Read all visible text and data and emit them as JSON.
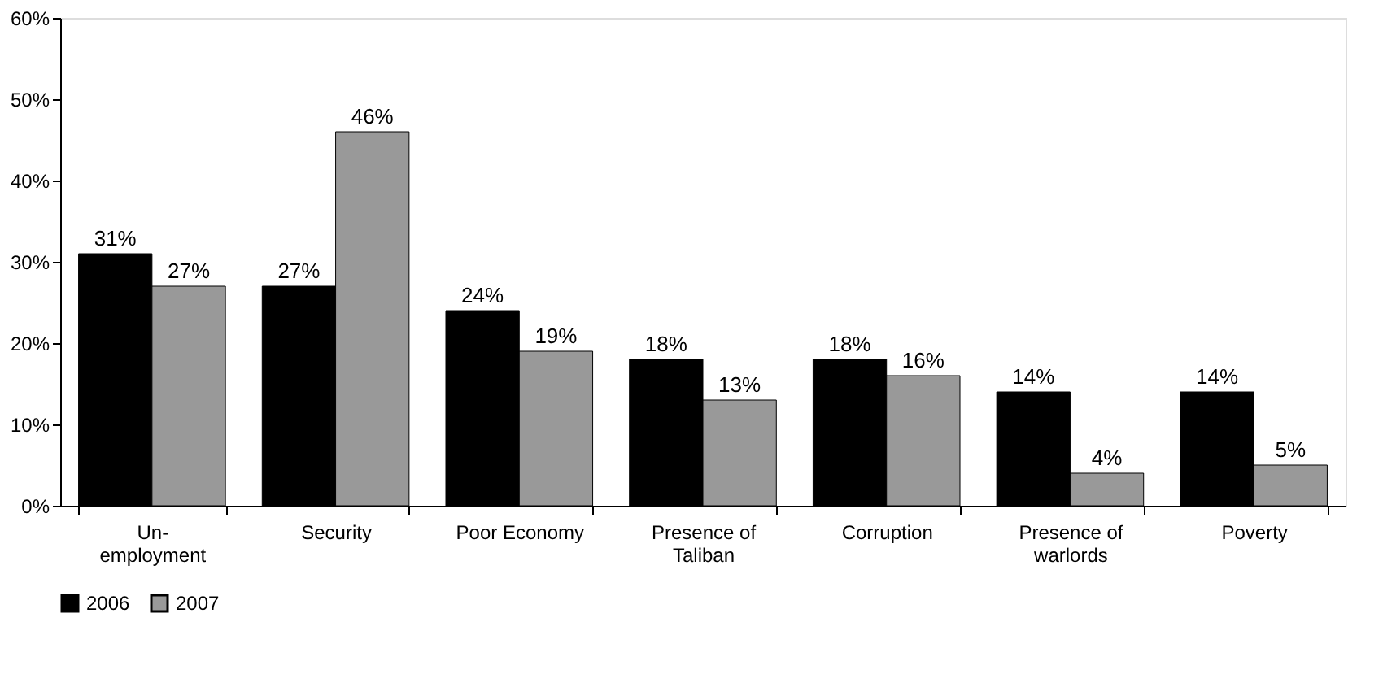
{
  "chart_data": {
    "type": "bar",
    "categories": [
      "Un-\nemployment",
      "Security",
      "Poor Economy",
      "Presence of\nTaliban",
      "Corruption",
      "Presence of\nwarlords",
      "Poverty"
    ],
    "series": [
      {
        "name": "2006",
        "color": "#000000",
        "values": [
          31,
          27,
          24,
          18,
          18,
          14,
          14
        ],
        "value_labels": [
          "31%",
          "27%",
          "24%",
          "18%",
          "18%",
          "14%",
          "14%"
        ]
      },
      {
        "name": "2007",
        "color": "#999999",
        "values": [
          27,
          46,
          19,
          13,
          16,
          4,
          5
        ],
        "value_labels": [
          "27%",
          "46%",
          "19%",
          "13%",
          "16%",
          "4%",
          "5%"
        ]
      }
    ],
    "ylim": [
      0,
      60
    ],
    "yticks": [
      {
        "value": 0,
        "label": "0%"
      },
      {
        "value": 10,
        "label": "10%"
      },
      {
        "value": 20,
        "label": "20%"
      },
      {
        "value": 30,
        "label": "30%"
      },
      {
        "value": 40,
        "label": "40%"
      },
      {
        "value": 50,
        "label": "50%"
      },
      {
        "value": 60,
        "label": "60%"
      }
    ],
    "grid": false,
    "legend": "bottom"
  }
}
